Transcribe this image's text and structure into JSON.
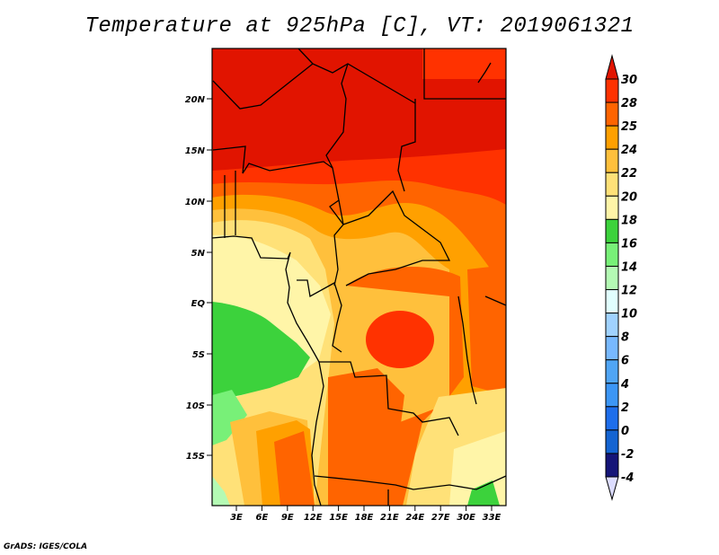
{
  "title": "Temperature at 925hPa [C], VT: 2019061321",
  "footer": "GrADS: IGES/COLA",
  "map": {
    "lat_ticks": [
      "20N",
      "15N",
      "10N",
      "5N",
      "EQ",
      "5S",
      "10S",
      "15S"
    ],
    "lon_ticks": [
      "3E",
      "6E",
      "9E",
      "12E",
      "15E",
      "18E",
      "21E",
      "24E",
      "27E",
      "30E",
      "33E"
    ]
  },
  "colorbar": {
    "labels": [
      "30",
      "28",
      "25",
      "24",
      "22",
      "20",
      "18",
      "16",
      "14",
      "12",
      "10",
      "8",
      "6",
      "4",
      "2",
      "0",
      "-2",
      "-4"
    ],
    "colors": {
      "above": "#e11400",
      "segments": [
        "#ff3200",
        "#ff6400",
        "#ffa000",
        "#ffc03c",
        "#ffe178",
        "#fff5a8",
        "#3cd23c",
        "#78f078",
        "#b4fab4",
        "#e1ffff",
        "#a0d2ff",
        "#78b9ff",
        "#50a5f5",
        "#3c96f5",
        "#1e6eeb",
        "#1464d2",
        "#141478"
      ],
      "below": "#dcdcff"
    }
  }
}
